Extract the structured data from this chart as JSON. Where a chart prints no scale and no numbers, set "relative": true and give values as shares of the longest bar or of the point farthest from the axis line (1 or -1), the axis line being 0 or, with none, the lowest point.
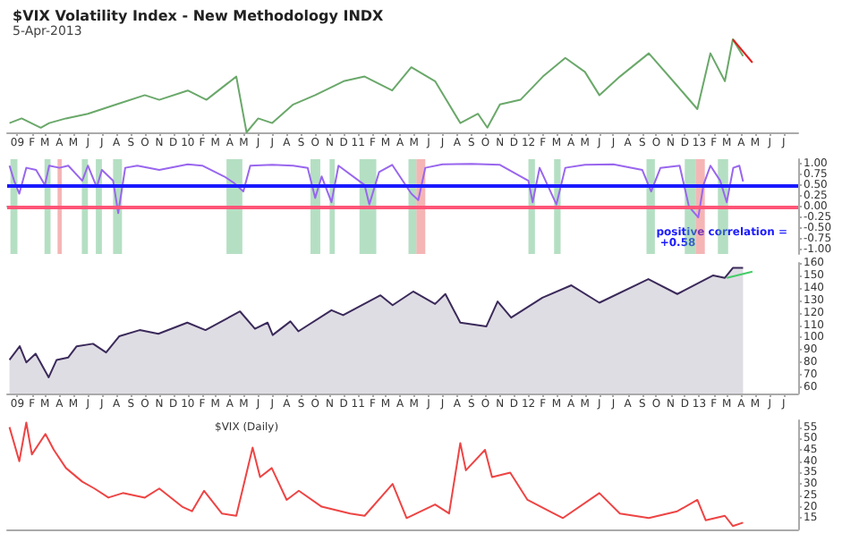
{
  "chart_data": [
    {
      "type": "line",
      "title": "$VIX Volatility Index - New Methodology INDX",
      "subtitle": "5-Apr-2013",
      "relative": true,
      "tick_labels": "x",
      "xlim": [
        "2008-12-10",
        "2013-08-01"
      ],
      "xticks": [
        {
          "value": "2009-01",
          "label": "09"
        },
        {
          "value": "2009-02",
          "label": "F"
        },
        {
          "value": "2009-03",
          "label": "M"
        },
        {
          "value": "2009-04",
          "label": "A"
        },
        {
          "value": "2009-05",
          "label": "M"
        },
        {
          "value": "2009-06",
          "label": "J"
        },
        {
          "value": "2009-07",
          "label": "J"
        },
        {
          "value": "2009-08",
          "label": "A"
        },
        {
          "value": "2009-09",
          "label": "S"
        },
        {
          "value": "2009-10",
          "label": "O"
        },
        {
          "value": "2009-11",
          "label": "N"
        },
        {
          "value": "2009-12",
          "label": "D"
        },
        {
          "value": "2010-01",
          "label": "10"
        },
        {
          "value": "2010-02",
          "label": "F"
        },
        {
          "value": "2010-03",
          "label": "M"
        },
        {
          "value": "2010-04",
          "label": "A"
        },
        {
          "value": "2010-05",
          "label": "M"
        },
        {
          "value": "2010-06",
          "label": "J"
        },
        {
          "value": "2010-07",
          "label": "J"
        },
        {
          "value": "2010-08",
          "label": "A"
        },
        {
          "value": "2010-09",
          "label": "S"
        },
        {
          "value": "2010-10",
          "label": "O"
        },
        {
          "value": "2010-11",
          "label": "N"
        },
        {
          "value": "2010-12",
          "label": "D"
        },
        {
          "value": "2011-01",
          "label": "11"
        },
        {
          "value": "2011-02",
          "label": "F"
        },
        {
          "value": "2011-03",
          "label": "M"
        },
        {
          "value": "2011-04",
          "label": "A"
        },
        {
          "value": "2011-05",
          "label": "M"
        },
        {
          "value": "2011-06",
          "label": "J"
        },
        {
          "value": "2011-07",
          "label": "J"
        },
        {
          "value": "2011-08",
          "label": "A"
        },
        {
          "value": "2011-09",
          "label": "S"
        },
        {
          "value": "2011-10",
          "label": "O"
        },
        {
          "value": "2011-11",
          "label": "N"
        },
        {
          "value": "2011-12",
          "label": "D"
        },
        {
          "value": "2012-01",
          "label": "12"
        },
        {
          "value": "2012-02",
          "label": "F"
        },
        {
          "value": "2012-03",
          "label": "M"
        },
        {
          "value": "2012-04",
          "label": "A"
        },
        {
          "value": "2012-05",
          "label": "M"
        },
        {
          "value": "2012-06",
          "label": "J"
        },
        {
          "value": "2012-07",
          "label": "J"
        },
        {
          "value": "2012-08",
          "label": "A"
        },
        {
          "value": "2012-09",
          "label": "S"
        },
        {
          "value": "2012-10",
          "label": "O"
        },
        {
          "value": "2012-11",
          "label": "N"
        },
        {
          "value": "2012-12",
          "label": "D"
        },
        {
          "value": "2013-01",
          "label": "13"
        },
        {
          "value": "2013-02",
          "label": "F"
        },
        {
          "value": "2013-03",
          "label": "M"
        },
        {
          "value": "2013-04",
          "label": "A"
        },
        {
          "value": "2013-05",
          "label": "M"
        },
        {
          "value": "2013-06",
          "label": "J"
        },
        {
          "value": "2013-07",
          "label": "J"
        }
      ],
      "series": [
        {
          "color": "#6aa86a",
          "x": [
            "2008-12-15",
            "2009-01-10",
            "2009-02-20",
            "2009-03-10",
            "2009-04-15",
            "2009-06-01",
            "2009-08-01",
            "2009-10-01",
            "2009-11-01",
            "2010-01-01",
            "2010-02-10",
            "2010-04-15",
            "2010-05-07",
            "2010-06-01",
            "2010-07-01",
            "2010-08-15",
            "2010-10-01",
            "2010-12-01",
            "2011-01-15",
            "2011-03-15",
            "2011-04-25",
            "2011-06-15",
            "2011-08-08",
            "2011-09-15",
            "2011-10-05",
            "2011-11-01",
            "2011-12-15",
            "2012-02-01",
            "2012-03-20",
            "2012-05-01",
            "2012-06-01",
            "2012-07-15",
            "2012-09-15",
            "2012-11-15",
            "2012-12-28",
            "2013-01-25",
            "2013-02-25",
            "2013-03-14",
            "2013-04-05"
          ],
          "values": [
            0.1,
            0.15,
            0.05,
            0.1,
            0.15,
            0.2,
            0.3,
            0.4,
            0.35,
            0.45,
            0.35,
            0.6,
            0.0,
            0.15,
            0.1,
            0.3,
            0.4,
            0.55,
            0.6,
            0.45,
            0.7,
            0.55,
            0.1,
            0.2,
            0.05,
            0.3,
            0.35,
            0.6,
            0.8,
            0.65,
            0.4,
            0.6,
            0.85,
            0.5,
            0.25,
            0.85,
            0.55,
            1.0,
            0.82
          ]
        },
        {
          "color": "#e02020",
          "x": [
            "2013-03-14",
            "2013-04-25"
          ],
          "values": [
            1.0,
            0.75
          ]
        }
      ]
    },
    {
      "type": "line",
      "tick_labels": "y",
      "xlim": [
        "2008-12-10",
        "2013-08-01"
      ],
      "ylim": [
        -1.1,
        1.1
      ],
      "yticks": [
        {
          "value": 1,
          "label": "1.00"
        },
        {
          "value": 0.75,
          "label": "0.75"
        },
        {
          "value": 0.5,
          "label": "0.50"
        },
        {
          "value": 0.25,
          "label": "0.25"
        },
        {
          "value": 0,
          "label": "0.00"
        },
        {
          "value": -0.25,
          "label": "-0.25"
        },
        {
          "value": -0.5,
          "label": "-0.50"
        },
        {
          "value": -0.75,
          "label": "-0.75"
        },
        {
          "value": -1,
          "label": "-1.00"
        }
      ],
      "series": [
        {
          "color": "#9966ee",
          "x": [
            "2008-12-15",
            "2008-12-25",
            "2009-01-05",
            "2009-01-20",
            "2009-02-10",
            "2009-03-01",
            "2009-03-10",
            "2009-04-01",
            "2009-04-20",
            "2009-05-20",
            "2009-06-01",
            "2009-06-20",
            "2009-07-01",
            "2009-07-25",
            "2009-08-05",
            "2009-08-20",
            "2009-09-15",
            "2009-11-01",
            "2010-01-01",
            "2010-02-01",
            "2010-03-20",
            "2010-04-10",
            "2010-04-30",
            "2010-05-15",
            "2010-07-01",
            "2010-08-15",
            "2010-09-15",
            "2010-10-01",
            "2010-10-15",
            "2010-11-05",
            "2010-11-20",
            "2011-01-15",
            "2011-01-25",
            "2011-02-15",
            "2011-03-15",
            "2011-04-25",
            "2011-05-10",
            "2011-05-25",
            "2011-07-01",
            "2011-09-01",
            "2011-11-01",
            "2012-01-01",
            "2012-01-10",
            "2012-01-25",
            "2012-03-01",
            "2012-03-20",
            "2012-05-01",
            "2012-07-01",
            "2012-09-01",
            "2012-09-20",
            "2012-10-10",
            "2012-11-20",
            "2012-12-10",
            "2012-12-30",
            "2013-01-10",
            "2013-01-25",
            "2013-02-15",
            "2013-03-01",
            "2013-03-15",
            "2013-03-28",
            "2013-04-05"
          ],
          "values": [
            0.95,
            0.6,
            0.3,
            0.9,
            0.85,
            0.5,
            0.95,
            0.9,
            0.95,
            0.6,
            0.95,
            0.45,
            0.85,
            0.6,
            -0.15,
            0.9,
            0.95,
            0.85,
            0.98,
            0.95,
            0.7,
            0.55,
            0.35,
            0.95,
            0.97,
            0.95,
            0.9,
            0.2,
            0.7,
            0.1,
            0.95,
            0.5,
            0.05,
            0.8,
            0.97,
            0.3,
            0.15,
            0.9,
            0.98,
            0.99,
            0.97,
            0.6,
            0.1,
            0.9,
            0.05,
            0.9,
            0.97,
            0.98,
            0.85,
            0.35,
            0.9,
            0.95,
            0.0,
            -0.25,
            0.5,
            0.95,
            0.6,
            0.1,
            0.9,
            0.95,
            0.58
          ]
        }
      ],
      "ref_lines": [
        {
          "axis": "y",
          "value": 0.5,
          "color": "#1a1aff"
        },
        {
          "axis": "y",
          "value": 0,
          "color": "#ff5577"
        }
      ],
      "bands": [
        {
          "axis": "x",
          "from": "2008-12-17",
          "to": "2009-01-01",
          "color": "#5cb87a"
        },
        {
          "axis": "x",
          "from": "2009-02-28",
          "to": "2009-03-13",
          "color": "#5cb87a"
        },
        {
          "axis": "x",
          "from": "2009-03-28",
          "to": "2009-04-06",
          "color": "#e85a5a"
        },
        {
          "axis": "x",
          "from": "2009-05-19",
          "to": "2009-06-01",
          "color": "#5cb87a"
        },
        {
          "axis": "x",
          "from": "2009-06-18",
          "to": "2009-07-01",
          "color": "#5cb87a"
        },
        {
          "axis": "x",
          "from": "2009-07-25",
          "to": "2009-08-13",
          "color": "#5cb87a"
        },
        {
          "axis": "x",
          "from": "2010-03-25",
          "to": "2010-04-28",
          "color": "#5cb87a"
        },
        {
          "axis": "x",
          "from": "2010-09-21",
          "to": "2010-10-12",
          "color": "#5cb87a"
        },
        {
          "axis": "x",
          "from": "2010-11-01",
          "to": "2010-11-12",
          "color": "#5cb87a"
        },
        {
          "axis": "x",
          "from": "2011-01-04",
          "to": "2011-02-09",
          "color": "#5cb87a"
        },
        {
          "axis": "x",
          "from": "2011-04-19",
          "to": "2011-05-06",
          "color": "#5cb87a"
        },
        {
          "axis": "x",
          "from": "2011-05-06",
          "to": "2011-05-25",
          "color": "#e85a5a"
        },
        {
          "axis": "x",
          "from": "2012-01-01",
          "to": "2012-01-15",
          "color": "#5cb87a"
        },
        {
          "axis": "x",
          "from": "2012-02-25",
          "to": "2012-03-10",
          "color": "#5cb87a"
        },
        {
          "axis": "x",
          "from": "2012-09-10",
          "to": "2012-09-28",
          "color": "#5cb87a"
        },
        {
          "axis": "x",
          "from": "2012-12-01",
          "to": "2012-12-25",
          "color": "#5cb87a"
        },
        {
          "axis": "x",
          "from": "2012-12-25",
          "to": "2013-01-13",
          "color": "#e85a5a"
        },
        {
          "axis": "x",
          "from": "2013-02-10",
          "to": "2013-03-04",
          "color": "#5cb87a"
        }
      ],
      "annotations": [
        "positive correlation = +0.58"
      ]
    },
    {
      "type": "area",
      "xlim": [
        "2008-12-10",
        "2013-08-01"
      ],
      "ylim": [
        55,
        160
      ],
      "yticks": [
        60,
        70,
        80,
        90,
        100,
        110,
        120,
        130,
        140,
        150,
        160
      ],
      "xticks": [
        {
          "value": "2009-01",
          "label": "09"
        },
        {
          "value": "2009-02",
          "label": "F"
        },
        {
          "value": "2009-03",
          "label": "M"
        },
        {
          "value": "2009-04",
          "label": "A"
        },
        {
          "value": "2009-05",
          "label": "M"
        },
        {
          "value": "2009-06",
          "label": "J"
        },
        {
          "value": "2009-07",
          "label": "J"
        },
        {
          "value": "2009-08",
          "label": "A"
        },
        {
          "value": "2009-09",
          "label": "S"
        },
        {
          "value": "2009-10",
          "label": "O"
        },
        {
          "value": "2009-11",
          "label": "N"
        },
        {
          "value": "2009-12",
          "label": "D"
        },
        {
          "value": "2010-01",
          "label": "10"
        },
        {
          "value": "2010-02",
          "label": "F"
        },
        {
          "value": "2010-03",
          "label": "M"
        },
        {
          "value": "2010-04",
          "label": "A"
        },
        {
          "value": "2010-05",
          "label": "M"
        },
        {
          "value": "2010-06",
          "label": "J"
        },
        {
          "value": "2010-07",
          "label": "J"
        },
        {
          "value": "2010-08",
          "label": "A"
        },
        {
          "value": "2010-09",
          "label": "S"
        },
        {
          "value": "2010-10",
          "label": "O"
        },
        {
          "value": "2010-11",
          "label": "N"
        },
        {
          "value": "2010-12",
          "label": "D"
        },
        {
          "value": "2011-01",
          "label": "11"
        },
        {
          "value": "2011-02",
          "label": "F"
        },
        {
          "value": "2011-03",
          "label": "M"
        },
        {
          "value": "2011-04",
          "label": "A"
        },
        {
          "value": "2011-05",
          "label": "M"
        },
        {
          "value": "2011-06",
          "label": "J"
        },
        {
          "value": "2011-07",
          "label": "J"
        },
        {
          "value": "2011-08",
          "label": "A"
        },
        {
          "value": "2011-09",
          "label": "S"
        },
        {
          "value": "2011-10",
          "label": "O"
        },
        {
          "value": "2011-11",
          "label": "N"
        },
        {
          "value": "2011-12",
          "label": "D"
        },
        {
          "value": "2012-01",
          "label": "12"
        },
        {
          "value": "2012-02",
          "label": "F"
        },
        {
          "value": "2012-03",
          "label": "M"
        },
        {
          "value": "2012-04",
          "label": "A"
        },
        {
          "value": "2012-05",
          "label": "M"
        },
        {
          "value": "2012-06",
          "label": "J"
        },
        {
          "value": "2012-07",
          "label": "J"
        },
        {
          "value": "2012-08",
          "label": "A"
        },
        {
          "value": "2012-09",
          "label": "S"
        },
        {
          "value": "2012-10",
          "label": "O"
        },
        {
          "value": "2012-11",
          "label": "N"
        },
        {
          "value": "2012-12",
          "label": "D"
        },
        {
          "value": "2013-01",
          "label": "13"
        },
        {
          "value": "2013-02",
          "label": "F"
        },
        {
          "value": "2013-03",
          "label": "M"
        },
        {
          "value": "2013-04",
          "label": "A"
        },
        {
          "value": "2013-05",
          "label": "M"
        },
        {
          "value": "2013-06",
          "label": "J"
        },
        {
          "value": "2013-07",
          "label": "J"
        }
      ],
      "series": [
        {
          "color": "#3b2a5a",
          "x": [
            "2008-12-15",
            "2009-01-06",
            "2009-01-20",
            "2009-02-09",
            "2009-03-09",
            "2009-03-26",
            "2009-04-20",
            "2009-05-08",
            "2009-06-12",
            "2009-07-10",
            "2009-08-07",
            "2009-09-20",
            "2009-10-30",
            "2009-12-31",
            "2010-02-08",
            "2010-04-23",
            "2010-05-25",
            "2010-06-21",
            "2010-07-02",
            "2010-08-09",
            "2010-08-26",
            "2010-11-05",
            "2010-11-30",
            "2011-02-18",
            "2011-03-16",
            "2011-04-29",
            "2011-06-15",
            "2011-07-07",
            "2011-08-08",
            "2011-10-03",
            "2011-10-27",
            "2011-11-25",
            "2012-01-31",
            "2012-04-02",
            "2012-06-01",
            "2012-09-14",
            "2012-11-15",
            "2013-01-31",
            "2013-02-25",
            "2013-03-14",
            "2013-04-05"
          ],
          "values": [
            82,
            93,
            80,
            87,
            68,
            82,
            84,
            93,
            95,
            88,
            101,
            106,
            103,
            112,
            106,
            121,
            107,
            112,
            102,
            113,
            105,
            122,
            118,
            134,
            126,
            137,
            127,
            135,
            112,
            109,
            129,
            116,
            132,
            142,
            128,
            147,
            135,
            150,
            148,
            156,
            156
          ]
        },
        {
          "type": "line",
          "color": "#44cc66",
          "x": [
            "2013-03-01",
            "2013-04-25"
          ],
          "values": [
            148,
            153
          ]
        }
      ]
    },
    {
      "type": "line",
      "tick_labels": "y",
      "xlim": [
        "2008-12-10",
        "2013-08-01"
      ],
      "ylim": [
        10,
        58
      ],
      "yticks": [
        15,
        20,
        25,
        30,
        35,
        40,
        45,
        50,
        55
      ],
      "series": [
        {
          "color": "#ee4444",
          "x": [
            "2008-12-15",
            "2009-01-05",
            "2009-01-20",
            "2009-02-01",
            "2009-03-02",
            "2009-03-20",
            "2009-04-15",
            "2009-05-20",
            "2009-06-15",
            "2009-07-15",
            "2009-08-15",
            "2009-10-01",
            "2009-11-01",
            "2009-12-20",
            "2010-01-10",
            "2010-02-05",
            "2010-03-15",
            "2010-04-15",
            "2010-05-20",
            "2010-06-05",
            "2010-06-30",
            "2010-08-01",
            "2010-08-27",
            "2010-10-15",
            "2010-12-15",
            "2011-01-15",
            "2011-03-16",
            "2011-04-15",
            "2011-06-15",
            "2011-07-15",
            "2011-08-08",
            "2011-08-20",
            "2011-09-30",
            "2011-10-15",
            "2011-11-23",
            "2011-12-30",
            "2012-02-15",
            "2012-03-15",
            "2012-06-01",
            "2012-07-15",
            "2012-09-15",
            "2012-11-15",
            "2012-12-28",
            "2013-01-15",
            "2013-02-25",
            "2013-03-14",
            "2013-04-05"
          ],
          "values": [
            55,
            40,
            57,
            43,
            52,
            45,
            37,
            31,
            28,
            24,
            26,
            24,
            28,
            20,
            18,
            27,
            17,
            16,
            46,
            33,
            37,
            23,
            27,
            20,
            17,
            16,
            30,
            15,
            21,
            17,
            48,
            36,
            45,
            33,
            35,
            23,
            18,
            15,
            26,
            17,
            15,
            18,
            23,
            14,
            16,
            11.5,
            13
          ]
        }
      ],
      "annotations": [
        "$VIX (Daily)"
      ]
    }
  ]
}
